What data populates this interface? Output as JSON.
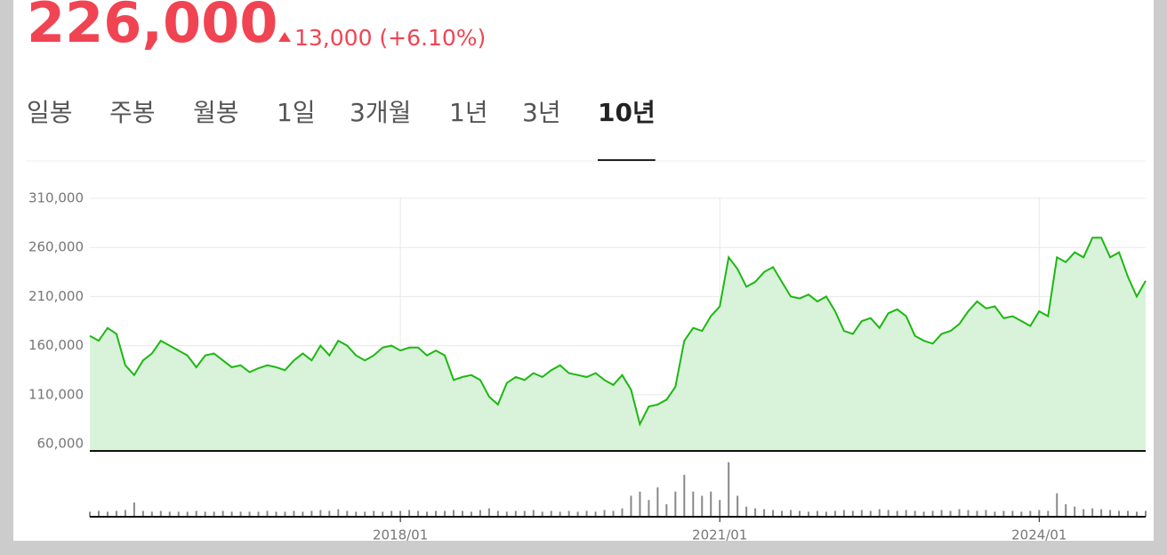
{
  "header": {
    "price": "226,000",
    "change": "13,000 (+6.10%)"
  },
  "tabs": [
    "일봉",
    "주봉",
    "월봉",
    "1일",
    "3개월",
    "1년",
    "3년",
    "10년"
  ],
  "active_tab": 7,
  "chart_data": [
    {
      "type": "line",
      "color": "#1db812",
      "area_color": "#d8f3d9",
      "grid": true,
      "x": [
        "2015/02",
        "2015/03",
        "2015/04",
        "2015/05",
        "2015/06",
        "2015/07",
        "2015/08",
        "2015/09",
        "2015/10",
        "2015/11",
        "2015/12",
        "2016/01",
        "2016/02",
        "2016/03",
        "2016/04",
        "2016/05",
        "2016/06",
        "2016/07",
        "2016/08",
        "2016/09",
        "2016/10",
        "2016/11",
        "2016/12",
        "2017/01",
        "2017/02",
        "2017/03",
        "2017/04",
        "2017/05",
        "2017/06",
        "2017/07",
        "2017/08",
        "2017/09",
        "2017/10",
        "2017/11",
        "2017/12",
        "2018/01",
        "2018/02",
        "2018/03",
        "2018/04",
        "2018/05",
        "2018/06",
        "2018/07",
        "2018/08",
        "2018/09",
        "2018/10",
        "2018/11",
        "2018/12",
        "2019/01",
        "2019/02",
        "2019/03",
        "2019/04",
        "2019/05",
        "2019/06",
        "2019/07",
        "2019/08",
        "2019/09",
        "2019/10",
        "2019/11",
        "2019/12",
        "2020/01",
        "2020/02",
        "2020/03",
        "2020/04",
        "2020/05",
        "2020/06",
        "2020/07",
        "2020/08",
        "2020/09",
        "2020/10",
        "2020/11",
        "2020/12",
        "2021/01",
        "2021/02",
        "2021/03",
        "2021/04",
        "2021/05",
        "2021/06",
        "2021/07",
        "2021/08",
        "2021/09",
        "2021/10",
        "2021/11",
        "2021/12",
        "2022/01",
        "2022/02",
        "2022/03",
        "2022/04",
        "2022/05",
        "2022/06",
        "2022/07",
        "2022/08",
        "2022/09",
        "2022/10",
        "2022/11",
        "2022/12",
        "2023/01",
        "2023/02",
        "2023/03",
        "2023/04",
        "2023/05",
        "2023/06",
        "2023/07",
        "2023/08",
        "2023/09",
        "2023/10",
        "2023/11",
        "2023/12",
        "2024/01",
        "2024/02",
        "2024/03",
        "2024/04",
        "2024/05",
        "2024/06",
        "2024/07",
        "2024/08",
        "2024/09",
        "2024/10",
        "2024/11",
        "2024/12",
        "2025/01"
      ],
      "values": [
        170000,
        165000,
        178000,
        172000,
        140000,
        130000,
        145000,
        152000,
        165000,
        160000,
        155000,
        150000,
        138000,
        150000,
        152000,
        145000,
        138000,
        140000,
        133000,
        137000,
        140000,
        138000,
        135000,
        145000,
        152000,
        145000,
        160000,
        150000,
        165000,
        160000,
        150000,
        145000,
        150000,
        158000,
        160000,
        155000,
        158000,
        158000,
        150000,
        155000,
        150000,
        125000,
        128000,
        130000,
        125000,
        108000,
        100000,
        122000,
        128000,
        125000,
        132000,
        128000,
        135000,
        140000,
        132000,
        130000,
        128000,
        132000,
        125000,
        120000,
        130000,
        115000,
        80000,
        98000,
        100000,
        105000,
        118000,
        165000,
        178000,
        175000,
        190000,
        200000,
        250000,
        238000,
        220000,
        225000,
        235000,
        240000,
        225000,
        210000,
        208000,
        212000,
        205000,
        210000,
        195000,
        175000,
        172000,
        185000,
        188000,
        178000,
        193000,
        197000,
        190000,
        170000,
        165000,
        162000,
        172000,
        175000,
        182000,
        195000,
        205000,
        198000,
        200000,
        188000,
        190000,
        185000,
        180000,
        195000,
        190000,
        250000,
        245000,
        255000,
        250000,
        270000,
        270000,
        250000,
        255000,
        230000,
        210000,
        226000
      ],
      "xlim": [
        "2015/02",
        "2025/01"
      ],
      "xticks": [
        "2018/01",
        "2021/01",
        "2024/01"
      ],
      "ylim": [
        52750,
        321800
      ],
      "yticks": [
        {
          "value": 60000,
          "label": "60,000"
        },
        {
          "value": 110000,
          "label": "110,000"
        },
        {
          "value": 160000,
          "label": "160,000"
        },
        {
          "value": 210000,
          "label": "210,000"
        },
        {
          "value": 260000,
          "label": "260,000"
        },
        {
          "value": 310000,
          "label": "310,000"
        }
      ]
    },
    {
      "type": "bar",
      "color": "#888888",
      "values": [
        6,
        7,
        6,
        7,
        8,
        17,
        7,
        6,
        7,
        6,
        6,
        6,
        7,
        6,
        6,
        7,
        6,
        6,
        6,
        6,
        7,
        6,
        6,
        7,
        6,
        7,
        8,
        7,
        9,
        7,
        6,
        6,
        7,
        6,
        7,
        7,
        8,
        7,
        6,
        7,
        7,
        8,
        7,
        6,
        8,
        10,
        7,
        6,
        7,
        7,
        8,
        6,
        7,
        6,
        7,
        6,
        7,
        6,
        8,
        7,
        10,
        25,
        30,
        20,
        35,
        15,
        30,
        50,
        30,
        25,
        30,
        20,
        65,
        25,
        12,
        10,
        9,
        8,
        7,
        8,
        7,
        6,
        7,
        6,
        7,
        8,
        7,
        8,
        7,
        9,
        8,
        7,
        8,
        7,
        6,
        7,
        8,
        7,
        9,
        8,
        7,
        8,
        6,
        7,
        7,
        6,
        7,
        8,
        7,
        28,
        15,
        12,
        9,
        10,
        9,
        8,
        7,
        7,
        6,
        7
      ],
      "ylim": [
        0,
        70
      ],
      "xlim": [
        "2015/02",
        "2025/01"
      ],
      "xticks": [
        "2018/01",
        "2021/01",
        "2024/01"
      ]
    }
  ]
}
